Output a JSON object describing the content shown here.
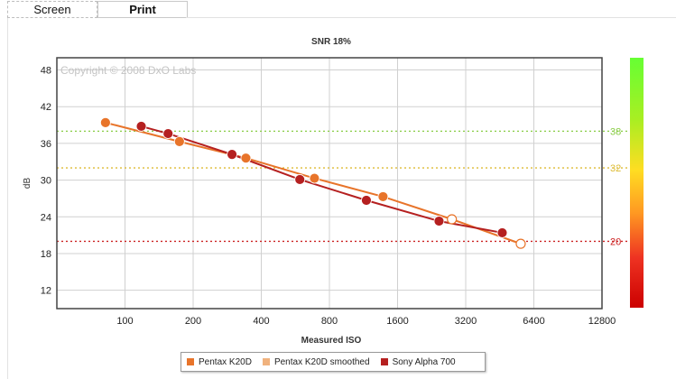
{
  "tabs": [
    {
      "label": "Screen",
      "active": false
    },
    {
      "label": "Print",
      "active": true
    }
  ],
  "chart_data": {
    "type": "line",
    "title": "SNR 18%",
    "xlabel": "Measured ISO",
    "ylabel": "dB",
    "x_scale": "log2",
    "xlim": [
      50,
      12800
    ],
    "ylim": [
      9,
      50
    ],
    "x_ticks": [
      "100",
      "200",
      "400",
      "800",
      "1600",
      "3200",
      "6400",
      "12800"
    ],
    "x_tick_values": [
      100,
      200,
      400,
      800,
      1600,
      3200,
      6400,
      12800
    ],
    "y_ticks": [
      12,
      18,
      24,
      30,
      36,
      42,
      48
    ],
    "grid": true,
    "watermark": "Copyright © 2008 DxO Labs",
    "colorbar": {
      "marks": [
        {
          "value": 38,
          "label": "38",
          "color": "#88cc44"
        },
        {
          "value": 32,
          "label": "32",
          "color": "#ddbb33"
        },
        {
          "value": 20,
          "label": "20",
          "color": "#cc2222"
        }
      ],
      "gradient": [
        "#66ff33",
        "#aaee22",
        "#ffdd22",
        "#ff9922",
        "#ee3322",
        "#cc0000"
      ]
    },
    "legend_position": "bottom",
    "series": [
      {
        "name": "Pentax K20D",
        "color": "#e8742a",
        "x": [
          82,
          174,
          342,
          687,
          1380
        ],
        "y": [
          39.4,
          36.3,
          33.6,
          30.3,
          27.3
        ]
      },
      {
        "name": "Pentax K20D smoothed",
        "color": "#e8742a",
        "hollow": true,
        "x": [
          2780,
          5600
        ],
        "y": [
          23.6,
          19.6
        ]
      },
      {
        "name": "Sony Alpha 700",
        "color": "#b52020",
        "x": [
          118,
          155,
          297,
          592,
          1165,
          2440,
          4640
        ],
        "y": [
          38.8,
          37.6,
          34.2,
          30.1,
          26.7,
          23.3,
          21.4
        ]
      }
    ],
    "legend": [
      {
        "label": "Pentax K20D",
        "color": "#e8742a"
      },
      {
        "label": "Pentax K20D smoothed",
        "color": "#f0b27e"
      },
      {
        "label": "Sony Alpha 700",
        "color": "#b52020"
      }
    ]
  }
}
